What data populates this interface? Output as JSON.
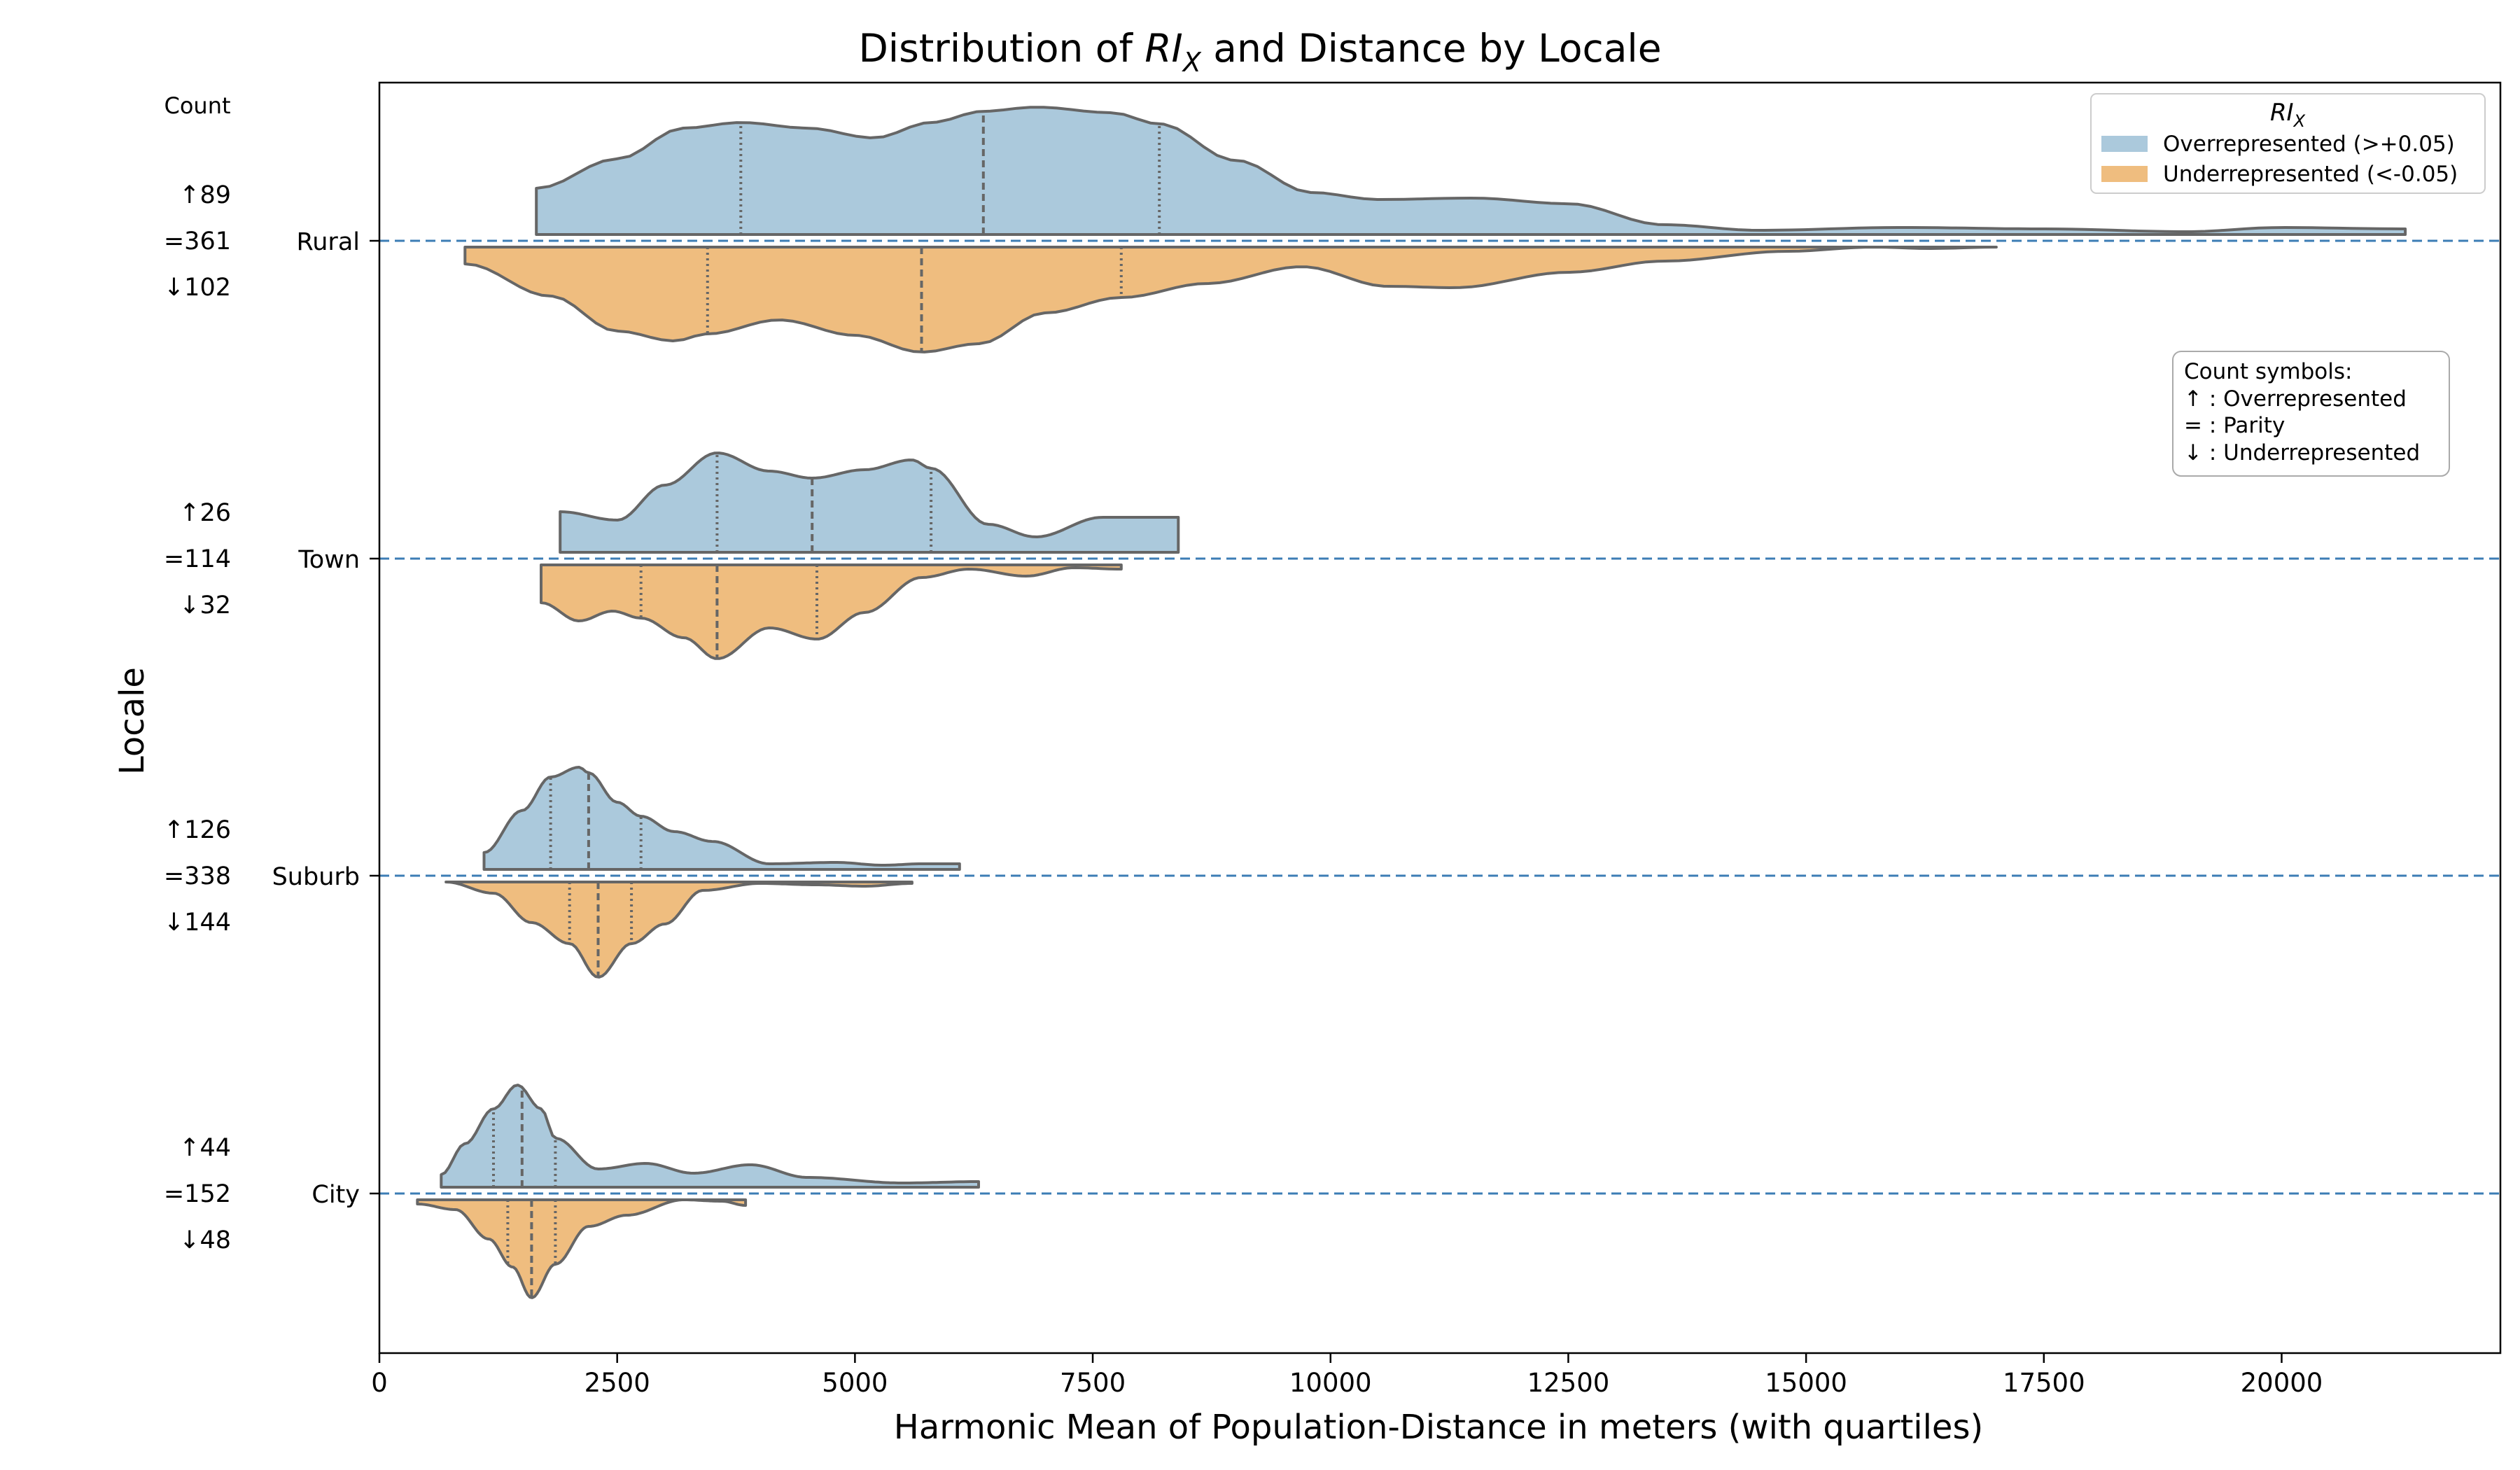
{
  "chart_data": {
    "type": "violin",
    "orientation": "horizontal",
    "split": true,
    "title_prefix": "Distribution of ",
    "title_var": "RI",
    "title_sub": "X",
    "title_suffix": " and Distance by Locale",
    "xlabel": "Harmonic Mean of Population-Distance in meters (with quartiles)",
    "ylabel": "Locale",
    "xlim": [
      0,
      22300
    ],
    "xticks": [
      0,
      2500,
      5000,
      7500,
      10000,
      12500,
      15000,
      17500,
      20000
    ],
    "count_header": "Count",
    "legend": {
      "title_var": "RI",
      "title_sub": "X",
      "placement": "upper right",
      "entries": [
        {
          "label": "Overrepresented (>+0.05)",
          "color": "#abc9dc"
        },
        {
          "label": "Underrepresented (<-0.05)",
          "color": "#efbd7f"
        }
      ]
    },
    "symbols_box": {
      "lines": [
        "Count symbols:",
        "↑ : Overrepresented",
        "= : Parity",
        "↓ : Underrepresented"
      ]
    },
    "colors": {
      "over": "#abc9dc",
      "under": "#efbd7f",
      "outline": "#666666",
      "reference": "#3c7db5"
    },
    "categories": [
      {
        "name": "Rural",
        "counts": {
          "up": "↑89",
          "eq": "=361",
          "down": "↓102"
        },
        "over": {
          "range": [
            1650,
            21300
          ],
          "quartiles": [
            3800,
            6350,
            8200
          ],
          "density": [
            [
              1650,
              0.33
            ],
            [
              2500,
              0.54
            ],
            [
              3200,
              0.76
            ],
            [
              3800,
              0.8
            ],
            [
              4500,
              0.76
            ],
            [
              5200,
              0.69
            ],
            [
              5800,
              0.8
            ],
            [
              6350,
              0.88
            ],
            [
              6900,
              0.91
            ],
            [
              7700,
              0.87
            ],
            [
              8200,
              0.79
            ],
            [
              9000,
              0.53
            ],
            [
              9800,
              0.3
            ],
            [
              10500,
              0.25
            ],
            [
              11500,
              0.26
            ],
            [
              12500,
              0.22
            ],
            [
              13500,
              0.07
            ],
            [
              14500,
              0.03
            ],
            [
              16000,
              0.05
            ],
            [
              17500,
              0.04
            ],
            [
              19000,
              0.02
            ],
            [
              20000,
              0.05
            ],
            [
              21300,
              0.04
            ]
          ]
        },
        "under": {
          "range": [
            900,
            17000
          ],
          "quartiles": [
            3450,
            5700,
            7800
          ],
          "density": [
            [
              900,
              0.12
            ],
            [
              1800,
              0.35
            ],
            [
              2500,
              0.6
            ],
            [
              3100,
              0.67
            ],
            [
              3450,
              0.62
            ],
            [
              4200,
              0.52
            ],
            [
              5000,
              0.63
            ],
            [
              5700,
              0.75
            ],
            [
              6300,
              0.69
            ],
            [
              7000,
              0.47
            ],
            [
              7800,
              0.36
            ],
            [
              8700,
              0.26
            ],
            [
              9700,
              0.14
            ],
            [
              10600,
              0.28
            ],
            [
              11300,
              0.29
            ],
            [
              12500,
              0.18
            ],
            [
              13500,
              0.1
            ],
            [
              14800,
              0.03
            ],
            [
              15700,
              0.0
            ],
            [
              16300,
              0.01
            ],
            [
              17000,
              0.0
            ]
          ]
        }
      },
      {
        "name": "Town",
        "counts": {
          "up": "↑26",
          "eq": "=114",
          "down": "↓32"
        },
        "over": {
          "range": [
            1900,
            8400
          ],
          "quartiles": [
            3550,
            4550,
            5800
          ],
          "density": [
            [
              1900,
              0.29
            ],
            [
              2500,
              0.23
            ],
            [
              3000,
              0.48
            ],
            [
              3550,
              0.71
            ],
            [
              4100,
              0.58
            ],
            [
              4550,
              0.53
            ],
            [
              5100,
              0.59
            ],
            [
              5600,
              0.66
            ],
            [
              5800,
              0.6
            ],
            [
              6400,
              0.2
            ],
            [
              6900,
              0.11
            ],
            [
              7600,
              0.25
            ],
            [
              8400,
              0.25
            ]
          ]
        },
        "under": {
          "range": [
            1700,
            7800
          ],
          "quartiles": [
            2750,
            3550,
            4600
          ],
          "density": [
            [
              1700,
              0.27
            ],
            [
              2100,
              0.4
            ],
            [
              2450,
              0.33
            ],
            [
              2750,
              0.38
            ],
            [
              3200,
              0.52
            ],
            [
              3550,
              0.67
            ],
            [
              4100,
              0.45
            ],
            [
              4600,
              0.53
            ],
            [
              5100,
              0.34
            ],
            [
              5700,
              0.09
            ],
            [
              6200,
              0.03
            ],
            [
              6800,
              0.08
            ],
            [
              7300,
              0.02
            ],
            [
              7800,
              0.03
            ]
          ]
        }
      },
      {
        "name": "Suburb",
        "counts": {
          "up": "↑126",
          "eq": "=338",
          "down": "↓144"
        },
        "over": {
          "range": [
            1100,
            6100
          ],
          "quartiles": [
            1800,
            2200,
            2750
          ],
          "density": [
            [
              1100,
              0.12
            ],
            [
              1500,
              0.42
            ],
            [
              1800,
              0.66
            ],
            [
              2100,
              0.73
            ],
            [
              2200,
              0.69
            ],
            [
              2500,
              0.48
            ],
            [
              2750,
              0.38
            ],
            [
              3100,
              0.27
            ],
            [
              3500,
              0.2
            ],
            [
              4100,
              0.04
            ],
            [
              4800,
              0.05
            ],
            [
              5300,
              0.03
            ],
            [
              5700,
              0.04
            ],
            [
              6100,
              0.04
            ]
          ]
        },
        "under": {
          "range": [
            700,
            5600
          ],
          "quartiles": [
            2000,
            2300,
            2650
          ],
          "density": [
            [
              700,
              0.0
            ],
            [
              1200,
              0.08
            ],
            [
              1600,
              0.29
            ],
            [
              2000,
              0.44
            ],
            [
              2300,
              0.68
            ],
            [
              2650,
              0.44
            ],
            [
              3000,
              0.3
            ],
            [
              3400,
              0.06
            ],
            [
              4000,
              0.01
            ],
            [
              4600,
              0.02
            ],
            [
              5100,
              0.03
            ],
            [
              5600,
              0.01
            ]
          ]
        }
      },
      {
        "name": "City",
        "counts": {
          "up": "↑44",
          "eq": "=152",
          "down": "↓48"
        },
        "over": {
          "range": [
            650,
            6300
          ],
          "quartiles": [
            1200,
            1500,
            1850
          ],
          "density": [
            [
              650,
              0.09
            ],
            [
              900,
              0.31
            ],
            [
              1200,
              0.56
            ],
            [
              1450,
              0.73
            ],
            [
              1700,
              0.56
            ],
            [
              1850,
              0.35
            ],
            [
              2300,
              0.13
            ],
            [
              2800,
              0.17
            ],
            [
              3300,
              0.1
            ],
            [
              3900,
              0.16
            ],
            [
              4500,
              0.07
            ],
            [
              5500,
              0.03
            ],
            [
              6300,
              0.04
            ]
          ]
        },
        "under": {
          "range": [
            400,
            3850
          ],
          "quartiles": [
            1350,
            1600,
            1850
          ],
          "density": [
            [
              400,
              0.03
            ],
            [
              800,
              0.07
            ],
            [
              1150,
              0.28
            ],
            [
              1400,
              0.48
            ],
            [
              1600,
              0.7
            ],
            [
              1850,
              0.46
            ],
            [
              2200,
              0.19
            ],
            [
              2600,
              0.11
            ],
            [
              3200,
              0.0
            ],
            [
              3600,
              0.01
            ],
            [
              3850,
              0.04
            ]
          ]
        }
      }
    ]
  }
}
